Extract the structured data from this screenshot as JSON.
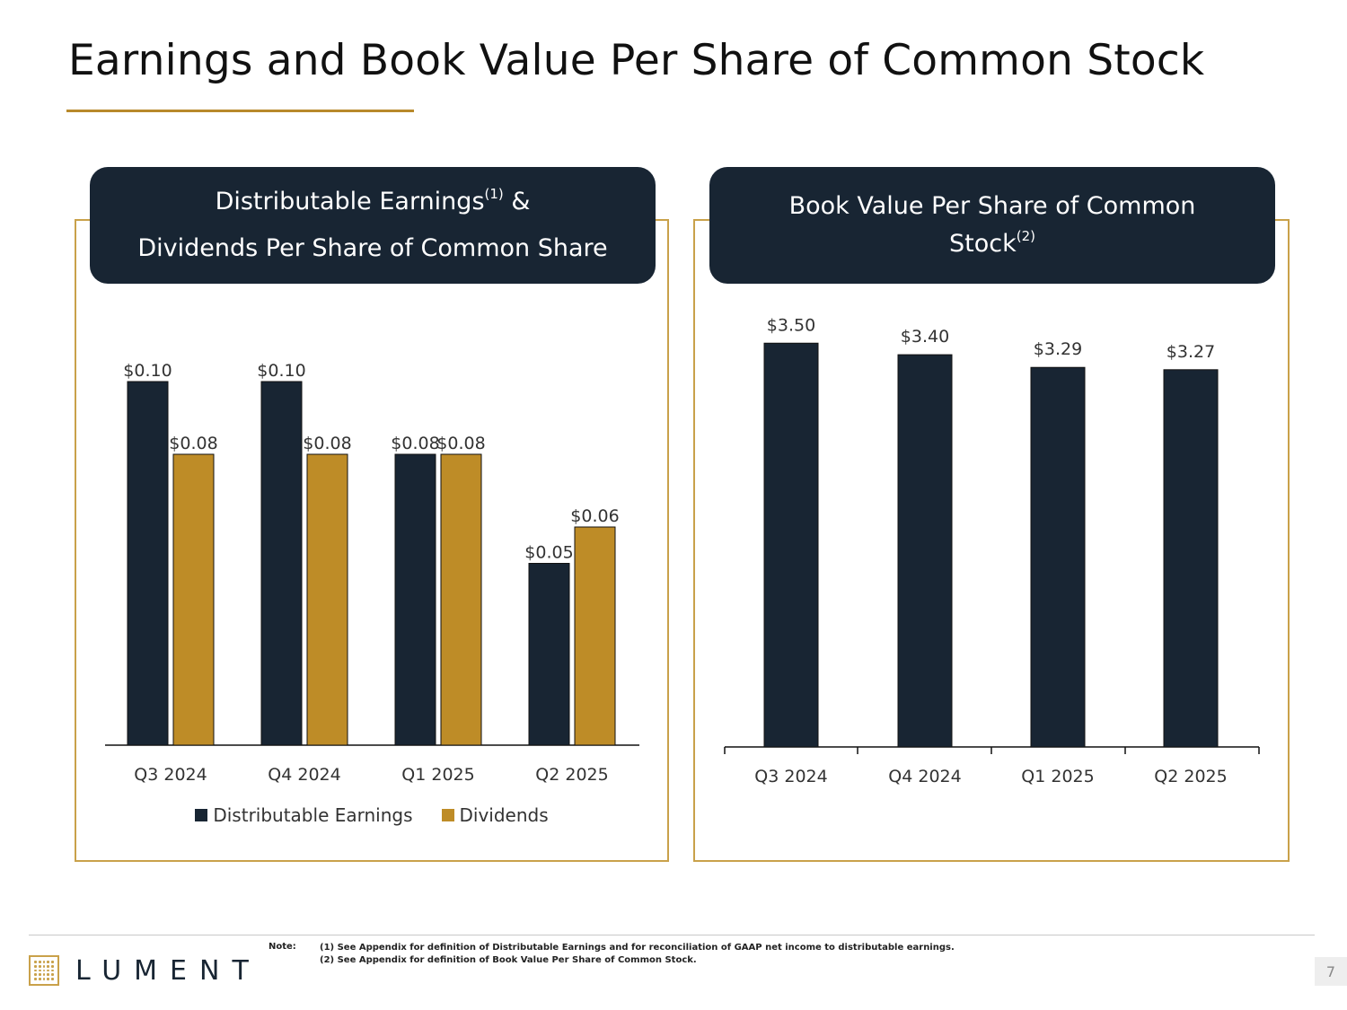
{
  "page": {
    "title": "Earnings and Book Value Per Share of Common Stock",
    "page_number": "7"
  },
  "left_panel": {
    "header_line1": "Distributable Earnings",
    "header_line1_sup": "(1)",
    "header_line1_suffix": " &",
    "header_line2": "Dividends Per Share of Common Share"
  },
  "right_panel": {
    "header_line1": "Book Value Per Share of Common",
    "header_line2": "Stock",
    "header_line2_sup": "(2)"
  },
  "footer": {
    "logo_text": "LUMENT",
    "notes_label": "Note:",
    "notes": [
      "(1) See Appendix for definition of Distributable Earnings and for reconciliation of GAAP net income to distributable earnings.",
      "(2) See Appendix for definition of Book Value Per Share of Common Stock."
    ]
  },
  "colors": {
    "navy": "#182533",
    "gold": "#be8c27",
    "frame": "#c9a14a"
  },
  "chart_data": [
    {
      "type": "bar",
      "categories": [
        "Q3 2024",
        "Q4 2024",
        "Q1 2025",
        "Q2 2025"
      ],
      "series": [
        {
          "name": "Distributable Earnings",
          "values": [
            0.1,
            0.1,
            0.08,
            0.05
          ],
          "labels": [
            "$0.10",
            "$0.10",
            "$0.08",
            "$0.05"
          ],
          "color": "#182533"
        },
        {
          "name": "Dividends",
          "values": [
            0.08,
            0.08,
            0.08,
            0.06
          ],
          "labels": [
            "$0.08",
            "$0.08",
            "$0.08",
            "$0.06"
          ],
          "color": "#be8c27"
        }
      ],
      "legend": "bottom"
    },
    {
      "type": "bar",
      "categories": [
        "Q3 2024",
        "Q4 2024",
        "Q1 2025",
        "Q2 2025"
      ],
      "values": [
        3.5,
        3.4,
        3.29,
        3.27
      ],
      "labels": [
        "$3.50",
        "$3.40",
        "$3.29",
        "$3.27"
      ],
      "color": "#182533"
    }
  ]
}
